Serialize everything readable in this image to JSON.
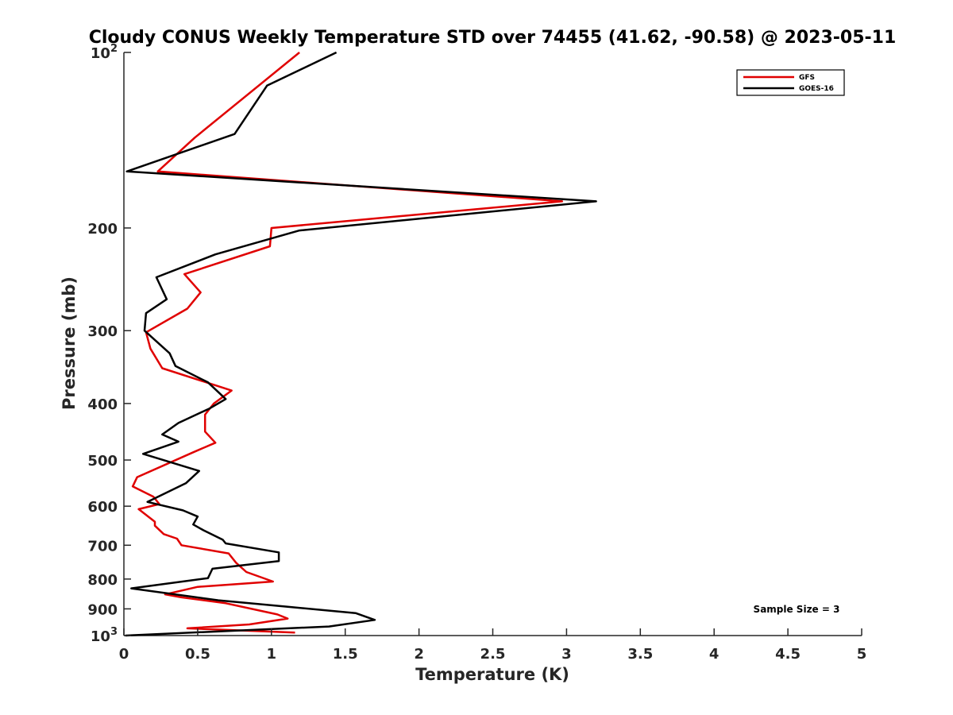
{
  "chart_data": {
    "type": "line",
    "title": "Cloudy CONUS Weekly Temperature STD over 74455 (41.62, -90.58) @ 2023-05-11",
    "xlabel": "Temperature (K)",
    "ylabel": "Pressure (mb)",
    "xlim": [
      0,
      5
    ],
    "ylim": [
      1000,
      100
    ],
    "y_scale": "log",
    "y_reversed": true,
    "grid": false,
    "legend_position": "top-right",
    "x_ticks": [
      {
        "value": 0,
        "label": "0"
      },
      {
        "value": 0.5,
        "label": "0.5"
      },
      {
        "value": 1,
        "label": "1"
      },
      {
        "value": 1.5,
        "label": "1.5"
      },
      {
        "value": 2,
        "label": "2"
      },
      {
        "value": 2.5,
        "label": "2.5"
      },
      {
        "value": 3,
        "label": "3"
      },
      {
        "value": 3.5,
        "label": "3.5"
      },
      {
        "value": 4,
        "label": "4"
      },
      {
        "value": 4.5,
        "label": "4.5"
      },
      {
        "value": 5,
        "label": "5"
      }
    ],
    "y_ticks": [
      {
        "value": 100,
        "label": "10",
        "sup": "2"
      },
      {
        "value": 200,
        "label": "200",
        "sup": ""
      },
      {
        "value": 300,
        "label": "300",
        "sup": ""
      },
      {
        "value": 400,
        "label": "400",
        "sup": ""
      },
      {
        "value": 500,
        "label": "500",
        "sup": ""
      },
      {
        "value": 600,
        "label": "600",
        "sup": ""
      },
      {
        "value": 700,
        "label": "700",
        "sup": ""
      },
      {
        "value": 800,
        "label": "800",
        "sup": ""
      },
      {
        "value": 900,
        "label": "900",
        "sup": ""
      },
      {
        "value": 1000,
        "label": "10",
        "sup": "3"
      }
    ],
    "annotation": "Sample Size = 3",
    "series": [
      {
        "name": "GFS",
        "color": "#e00000",
        "points": [
          [
            1.19,
            100
          ],
          [
            0.48,
            140
          ],
          [
            0.23,
            160
          ],
          [
            2.97,
            180
          ],
          [
            1.0,
            200
          ],
          [
            0.99,
            215
          ],
          [
            0.41,
            240
          ],
          [
            0.52,
            258
          ],
          [
            0.43,
            275
          ],
          [
            0.15,
            302
          ],
          [
            0.18,
            322
          ],
          [
            0.26,
            348
          ],
          [
            0.73,
            380
          ],
          [
            0.61,
            400
          ],
          [
            0.55,
            418
          ],
          [
            0.55,
            447
          ],
          [
            0.62,
            467
          ],
          [
            0.47,
            485
          ],
          [
            0.09,
            535
          ],
          [
            0.06,
            555
          ],
          [
            0.2,
            578
          ],
          [
            0.24,
            595
          ],
          [
            0.1,
            607
          ],
          [
            0.21,
            638
          ],
          [
            0.21,
            648
          ],
          [
            0.27,
            670
          ],
          [
            0.36,
            682
          ],
          [
            0.39,
            700
          ],
          [
            0.71,
            723
          ],
          [
            0.76,
            750
          ],
          [
            0.83,
            778
          ],
          [
            1.01,
            808
          ],
          [
            0.5,
            825
          ],
          [
            0.28,
            850
          ],
          [
            0.39,
            860
          ],
          [
            0.69,
            880
          ],
          [
            1.04,
            920
          ],
          [
            1.11,
            935
          ],
          [
            0.85,
            957
          ],
          [
            0.43,
            972
          ],
          [
            1.16,
            988
          ]
        ]
      },
      {
        "name": "GOES-16",
        "color": "#000000",
        "points": [
          [
            1.44,
            100
          ],
          [
            0.97,
            114
          ],
          [
            0.75,
            138
          ],
          [
            0.02,
            160
          ],
          [
            3.2,
            180
          ],
          [
            1.19,
            202
          ],
          [
            0.62,
            222
          ],
          [
            0.22,
            243
          ],
          [
            0.29,
            265
          ],
          [
            0.15,
            280
          ],
          [
            0.14,
            300
          ],
          [
            0.31,
            328
          ],
          [
            0.35,
            345
          ],
          [
            0.57,
            368
          ],
          [
            0.69,
            393
          ],
          [
            0.58,
            408
          ],
          [
            0.37,
            432
          ],
          [
            0.26,
            452
          ],
          [
            0.37,
            465
          ],
          [
            0.13,
            488
          ],
          [
            0.51,
            522
          ],
          [
            0.42,
            548
          ],
          [
            0.16,
            590
          ],
          [
            0.4,
            610
          ],
          [
            0.5,
            625
          ],
          [
            0.47,
            645
          ],
          [
            0.54,
            660
          ],
          [
            0.67,
            685
          ],
          [
            0.69,
            695
          ],
          [
            1.05,
            720
          ],
          [
            1.05,
            745
          ],
          [
            0.6,
            768
          ],
          [
            0.57,
            797
          ],
          [
            0.05,
            830
          ],
          [
            0.64,
            870
          ],
          [
            1.57,
            915
          ],
          [
            1.7,
            940
          ],
          [
            1.39,
            965
          ],
          [
            0.01,
            1000
          ]
        ]
      }
    ]
  }
}
